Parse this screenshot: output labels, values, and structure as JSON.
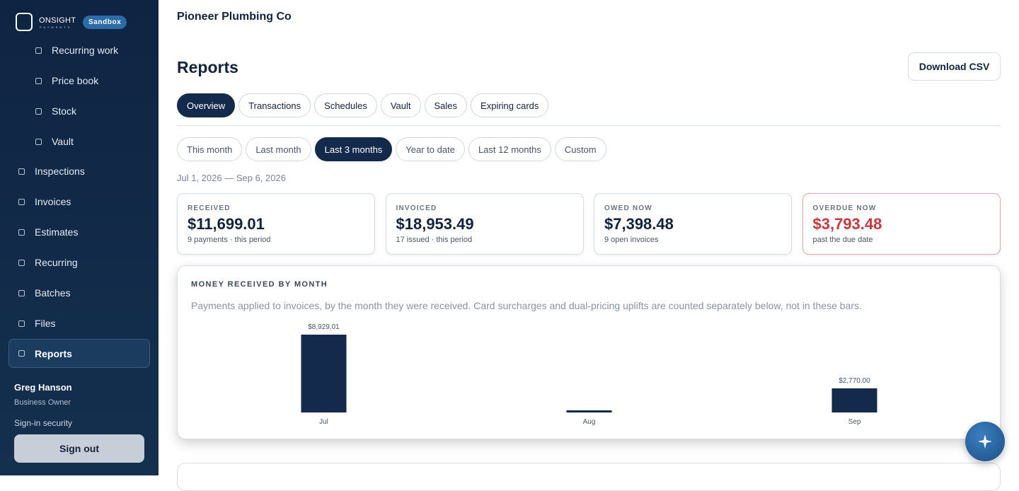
{
  "sidebar": {
    "brand": "ONSIGHT",
    "brand_sub": "PAYMENTS",
    "badge": "Sandbox",
    "sub_nav": [
      "Recurring work",
      "Price book",
      "Stock",
      "Vault"
    ],
    "nav": [
      "Inspections",
      "Invoices",
      "Estimates",
      "Recurring",
      "Batches",
      "Files",
      "Reports"
    ],
    "user_name": "Greg Hanson",
    "user_role": "Business Owner",
    "security": "Sign-in security",
    "sign_out": "Sign out"
  },
  "header": {
    "company": "Pioneer Plumbing Co"
  },
  "page": {
    "title": "Reports",
    "download": "Download CSV",
    "tabs": [
      "Overview",
      "Transactions",
      "Schedules",
      "Vault",
      "Sales",
      "Expiring cards"
    ],
    "ranges": [
      "This month",
      "Last month",
      "Last 3 months",
      "Year to date",
      "Last 12 months",
      "Custom"
    ],
    "date_range": "Jul 1, 2026 — Sep 6, 2026",
    "cards": [
      {
        "label": "RECEIVED",
        "value": "$11,699.01",
        "note": "9 payments · this period"
      },
      {
        "label": "INVOICED",
        "value": "$18,953.49",
        "note": "17 issued · this period"
      },
      {
        "label": "OWED NOW",
        "value": "$7,398.48",
        "note": "9 open invoices"
      },
      {
        "label": "OVERDUE NOW",
        "value": "$3,793.48",
        "note": "past the due date"
      }
    ]
  },
  "chart_data": {
    "type": "bar",
    "title": "MONEY RECEIVED BY MONTH",
    "subtitle": "Payments applied to invoices, by the month they were received. Card surcharges and dual-pricing uplifts are counted separately below, not in these bars.",
    "categories": [
      "Jul",
      "Aug",
      "Sep"
    ],
    "values": [
      8929.01,
      0,
      2770.0
    ],
    "value_labels": [
      "$8,929.01",
      null,
      "$2,770.00"
    ],
    "color": "#142a4c"
  }
}
